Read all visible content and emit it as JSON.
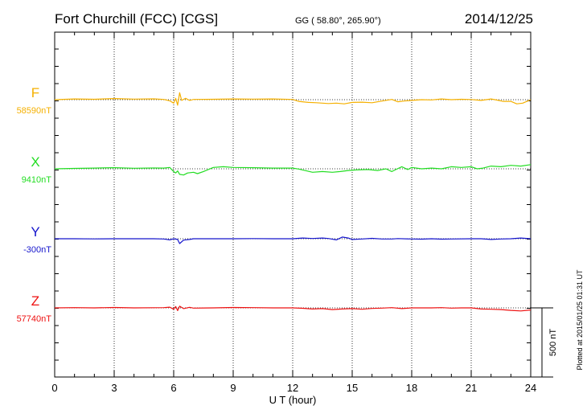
{
  "chart_data": {
    "type": "line",
    "title": "Fort Churchill (FCC)  [CGS]",
    "subtitle": "GG ( 58.80°, 265.90°)",
    "date": "2014/12/25",
    "xlabel": "U T (hour)",
    "x_ticks": [
      "0",
      "3",
      "6",
      "9",
      "12",
      "15",
      "18",
      "21",
      "24"
    ],
    "xlim": [
      0,
      24
    ],
    "grid": true,
    "scale_bar_label": "500 nT",
    "scale_bar_nT": 500,
    "footer": "Plotted at 2015/01/25 01:31  UT",
    "series": [
      {
        "name": "F",
        "baseline_label": "58590nT",
        "color": "#f5b000",
        "points": [
          [
            0,
            0
          ],
          [
            1,
            -5
          ],
          [
            2,
            -3
          ],
          [
            3,
            -8
          ],
          [
            4,
            -4
          ],
          [
            5,
            -6
          ],
          [
            5.5,
            -2
          ],
          [
            5.8,
            8
          ],
          [
            6.0,
            25
          ],
          [
            6.1,
            -10
          ],
          [
            6.2,
            40
          ],
          [
            6.3,
            -50
          ],
          [
            6.4,
            5
          ],
          [
            6.6,
            -10
          ],
          [
            6.8,
            5
          ],
          [
            7,
            -2
          ],
          [
            8,
            -3
          ],
          [
            9,
            -5
          ],
          [
            10,
            -4
          ],
          [
            11,
            -5
          ],
          [
            12,
            -2
          ],
          [
            12.3,
            12
          ],
          [
            12.8,
            20
          ],
          [
            13.2,
            22
          ],
          [
            13.8,
            28
          ],
          [
            14.2,
            25
          ],
          [
            14.6,
            30
          ],
          [
            15,
            20
          ],
          [
            15.5,
            18
          ],
          [
            16,
            22
          ],
          [
            16.5,
            10
          ],
          [
            17,
            -2
          ],
          [
            17.3,
            15
          ],
          [
            17.6,
            10
          ],
          [
            18,
            5
          ],
          [
            18.5,
            0
          ],
          [
            19,
            2
          ],
          [
            19.5,
            -5
          ],
          [
            20,
            0
          ],
          [
            20.5,
            -3
          ],
          [
            21,
            -1
          ],
          [
            21.5,
            5
          ],
          [
            22,
            -5
          ],
          [
            22.3,
            3
          ],
          [
            22.6,
            12
          ],
          [
            23,
            12
          ],
          [
            23.3,
            30
          ],
          [
            23.6,
            25
          ],
          [
            24,
            0
          ]
        ]
      },
      {
        "name": "X",
        "baseline_label": "9410nT",
        "color": "#22dd22",
        "points": [
          [
            0,
            0
          ],
          [
            1,
            -3
          ],
          [
            2,
            -5
          ],
          [
            3,
            -8
          ],
          [
            4,
            -4
          ],
          [
            5,
            -6
          ],
          [
            5.5,
            -5
          ],
          [
            5.8,
            -10
          ],
          [
            6.0,
            20
          ],
          [
            6.1,
            30
          ],
          [
            6.2,
            15
          ],
          [
            6.3,
            40
          ],
          [
            6.5,
            45
          ],
          [
            6.7,
            30
          ],
          [
            7,
            25
          ],
          [
            7.2,
            35
          ],
          [
            7.5,
            20
          ],
          [
            8,
            -10
          ],
          [
            8.5,
            -15
          ],
          [
            9,
            -10
          ],
          [
            10,
            -8
          ],
          [
            11,
            -5
          ],
          [
            12,
            -5
          ],
          [
            12.3,
            2
          ],
          [
            12.7,
            15
          ],
          [
            13.0,
            25
          ],
          [
            13.5,
            20
          ],
          [
            14,
            25
          ],
          [
            14.4,
            20
          ],
          [
            14.8,
            12
          ],
          [
            15.2,
            8
          ],
          [
            15.8,
            5
          ],
          [
            16.3,
            12
          ],
          [
            16.7,
            0
          ],
          [
            17,
            20
          ],
          [
            17.2,
            5
          ],
          [
            17.5,
            -15
          ],
          [
            17.8,
            5
          ],
          [
            18,
            -10
          ],
          [
            18.5,
            0
          ],
          [
            19,
            -5
          ],
          [
            19.5,
            0
          ],
          [
            20,
            -15
          ],
          [
            20.5,
            -10
          ],
          [
            21,
            -15
          ],
          [
            21.3,
            0
          ],
          [
            21.6,
            -5
          ],
          [
            22,
            -20
          ],
          [
            22.5,
            -15
          ],
          [
            23,
            -25
          ],
          [
            23.5,
            -20
          ],
          [
            24,
            -30
          ]
        ]
      },
      {
        "name": "Y",
        "baseline_label": "-300nT",
        "color": "#1515cc",
        "points": [
          [
            0,
            0
          ],
          [
            1,
            0
          ],
          [
            2,
            1
          ],
          [
            3,
            0
          ],
          [
            4,
            0
          ],
          [
            5,
            0
          ],
          [
            5.5,
            2
          ],
          [
            5.8,
            8
          ],
          [
            6.0,
            0
          ],
          [
            6.2,
            5
          ],
          [
            6.3,
            35
          ],
          [
            6.5,
            10
          ],
          [
            6.8,
            5
          ],
          [
            7,
            0
          ],
          [
            8,
            0
          ],
          [
            9,
            0
          ],
          [
            10,
            -1
          ],
          [
            11,
            0
          ],
          [
            12,
            0
          ],
          [
            12.5,
            -5
          ],
          [
            13,
            -2
          ],
          [
            13.5,
            -5
          ],
          [
            13.8,
            -2
          ],
          [
            14.2,
            8
          ],
          [
            14.5,
            -12
          ],
          [
            14.8,
            -5
          ],
          [
            15,
            5
          ],
          [
            15.5,
            2
          ],
          [
            16,
            -3
          ],
          [
            16.5,
            2
          ],
          [
            17,
            2
          ],
          [
            17.3,
            -1
          ],
          [
            18,
            2
          ],
          [
            18.5,
            3
          ],
          [
            19,
            0
          ],
          [
            19.5,
            3
          ],
          [
            20,
            2
          ],
          [
            21,
            0
          ],
          [
            21.5,
            0
          ],
          [
            22,
            5
          ],
          [
            22.5,
            2
          ],
          [
            23,
            0
          ],
          [
            23.5,
            -5
          ],
          [
            24,
            0
          ]
        ]
      },
      {
        "name": "Z",
        "baseline_label": "57740nT",
        "color": "#ee1111",
        "points": [
          [
            0,
            0
          ],
          [
            1,
            -2
          ],
          [
            2,
            0
          ],
          [
            3,
            -3
          ],
          [
            4,
            0
          ],
          [
            5,
            -1
          ],
          [
            5.5,
            -2
          ],
          [
            5.8,
            -5
          ],
          [
            6.0,
            10
          ],
          [
            6.1,
            -10
          ],
          [
            6.2,
            20
          ],
          [
            6.3,
            -12
          ],
          [
            6.5,
            5
          ],
          [
            6.8,
            -4
          ],
          [
            7,
            2
          ],
          [
            8,
            0
          ],
          [
            9,
            -3
          ],
          [
            10,
            -2
          ],
          [
            11,
            0
          ],
          [
            12,
            0
          ],
          [
            12.5,
            3
          ],
          [
            13,
            8
          ],
          [
            13.5,
            5
          ],
          [
            14,
            12
          ],
          [
            14.5,
            8
          ],
          [
            15,
            5
          ],
          [
            15.5,
            10
          ],
          [
            16,
            4
          ],
          [
            16.5,
            2
          ],
          [
            17,
            -2
          ],
          [
            17.5,
            5
          ],
          [
            18,
            0
          ],
          [
            18.5,
            0
          ],
          [
            19,
            0
          ],
          [
            19.5,
            -2
          ],
          [
            20,
            2
          ],
          [
            20.5,
            0
          ],
          [
            21,
            0
          ],
          [
            21.5,
            8
          ],
          [
            22,
            10
          ],
          [
            22.5,
            12
          ],
          [
            23,
            18
          ],
          [
            23.5,
            22
          ],
          [
            24,
            15
          ]
        ]
      }
    ]
  }
}
